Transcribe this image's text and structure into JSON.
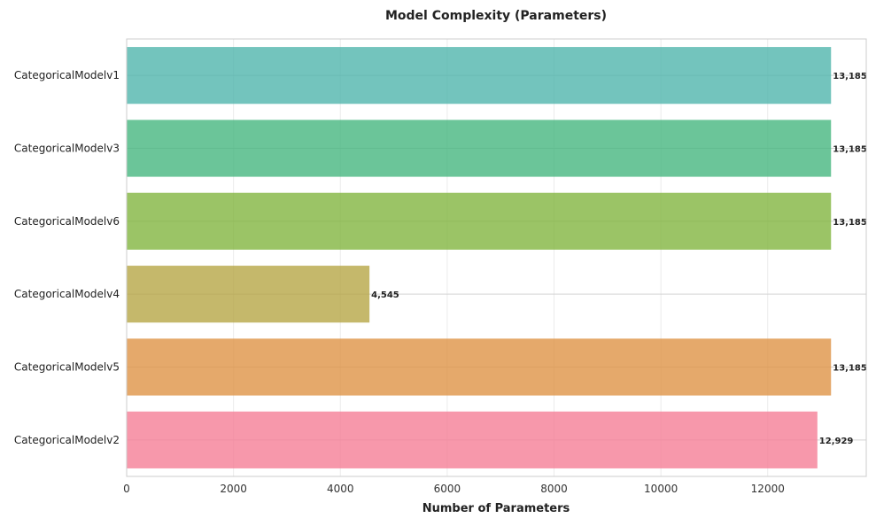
{
  "chart_data": {
    "type": "bar",
    "orientation": "horizontal",
    "title": "Model Complexity (Parameters)",
    "xlabel": "Number of Parameters",
    "ylabel": "",
    "xlim": [
      0,
      13844
    ],
    "xticks": [
      0,
      2000,
      4000,
      6000,
      8000,
      10000,
      12000
    ],
    "grid": true,
    "categories": [
      "CategoricalModelv1",
      "CategoricalModelv3",
      "CategoricalModelv6",
      "CategoricalModelv4",
      "CategoricalModelv5",
      "CategoricalModelv2"
    ],
    "values": [
      13185,
      13185,
      13185,
      4545,
      13185,
      12929
    ],
    "value_labels": [
      "13,185",
      "13,185",
      "13,185",
      "4,545",
      "13,185",
      "12,929"
    ],
    "colors": [
      "#50b5ac",
      "#46b77f",
      "#82b540",
      "#b6a646",
      "#df9446",
      "#f57e96"
    ]
  }
}
